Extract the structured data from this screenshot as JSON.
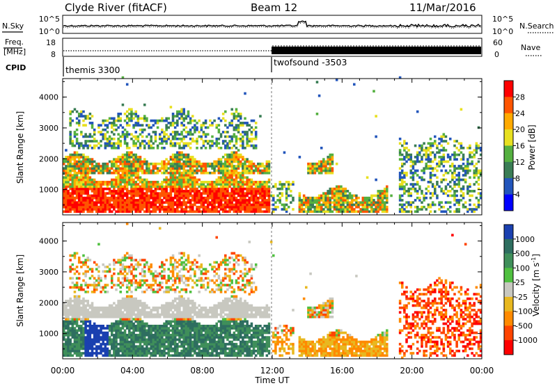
{
  "header": {
    "station": "Clyde River (fitACF)",
    "beam": "Beam 12",
    "date": "11/Mar/2016"
  },
  "noise_panel": {
    "left_label": "N.Sky",
    "right_label": "N.Search",
    "left_ticks": [
      "10^5",
      "10^0"
    ],
    "right_ticks": [
      "10^5",
      "10^0"
    ]
  },
  "freq_panel": {
    "left_label_top": "Freq.",
    "left_label_bottom": "[MHz]",
    "right_label": "Nave",
    "left_ticks": [
      "18",
      "8"
    ],
    "right_ticks": [
      "60",
      "0"
    ]
  },
  "cpid_panel": {
    "label": "CPID",
    "modes": [
      {
        "name": "themis 3300",
        "start_hour": 0
      },
      {
        "name": "twofsound -3503",
        "start_hour": 12
      }
    ]
  },
  "chart_data": [
    {
      "type": "heatmap",
      "ylabel": "Slant Range [km]",
      "ylim": [
        180,
        4600
      ],
      "xlim_hours": [
        0,
        24
      ],
      "y_ticks": [
        "1000",
        "2000",
        "3000",
        "4000"
      ],
      "colorbar": {
        "label": "Power [dB]",
        "ticks": [
          "4",
          "8",
          "12",
          "16",
          "20",
          "24",
          "28"
        ],
        "colors": [
          "#0000ff",
          "#2255bb",
          "#3a7d55",
          "#55b040",
          "#e8e020",
          "#ffaa00",
          "#ff5500",
          "#ff0000"
        ]
      }
    },
    {
      "type": "heatmap",
      "ylabel": "Slant Range [km]",
      "ylim": [
        180,
        4600
      ],
      "xlim_hours": [
        0,
        24
      ],
      "y_ticks": [
        "1000",
        "2000",
        "3000",
        "4000"
      ],
      "x_ticks": [
        "00:00",
        "04:00",
        "08:00",
        "12:00",
        "16:00",
        "20:00",
        "00:00"
      ],
      "xlabel": "Time UT",
      "colorbar": {
        "label": "Velocity [m s-1]",
        "label_main": "Velocity",
        "label_unit_open": "[m s",
        "label_sup": "-1",
        "label_unit_close": "]",
        "ticks": [
          "1000",
          "500",
          "100",
          "25",
          "-25",
          "-100",
          "-500",
          "-1000"
        ],
        "colors": [
          "#1a40b0",
          "#2e6e60",
          "#3f8f5a",
          "#50c040",
          "#c8c8c0",
          "#e8b820",
          "#ff8a00",
          "#ff4400",
          "#ff0000"
        ]
      }
    }
  ]
}
